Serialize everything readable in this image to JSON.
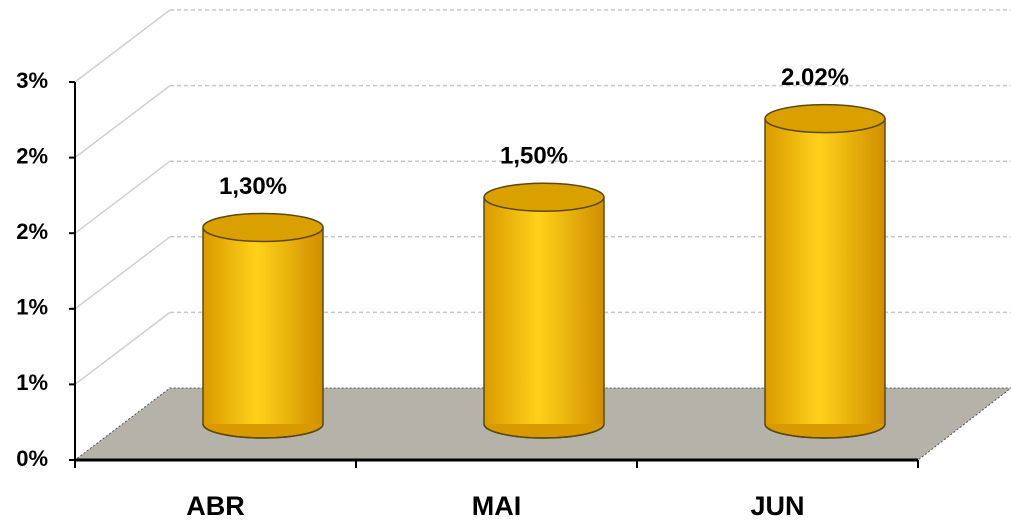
{
  "chart_data": {
    "type": "bar3d",
    "categories": [
      "ABR",
      "MAI",
      "JUN"
    ],
    "values": [
      1.3,
      1.5,
      2.02
    ],
    "value_labels": [
      "1,30%",
      "1,50%",
      "2.02%"
    ],
    "color": "#ffc000",
    "ylim": [
      0,
      2.5
    ],
    "yticks": [
      {
        "value": 0,
        "label": "0%"
      },
      {
        "value": 0.5,
        "label": "1%"
      },
      {
        "value": 1,
        "label": "1%"
      },
      {
        "value": 1.5,
        "label": "2%"
      },
      {
        "value": 2,
        "label": "2%"
      },
      {
        "value": 2.5,
        "label": "3%"
      }
    ],
    "grid": true
  }
}
